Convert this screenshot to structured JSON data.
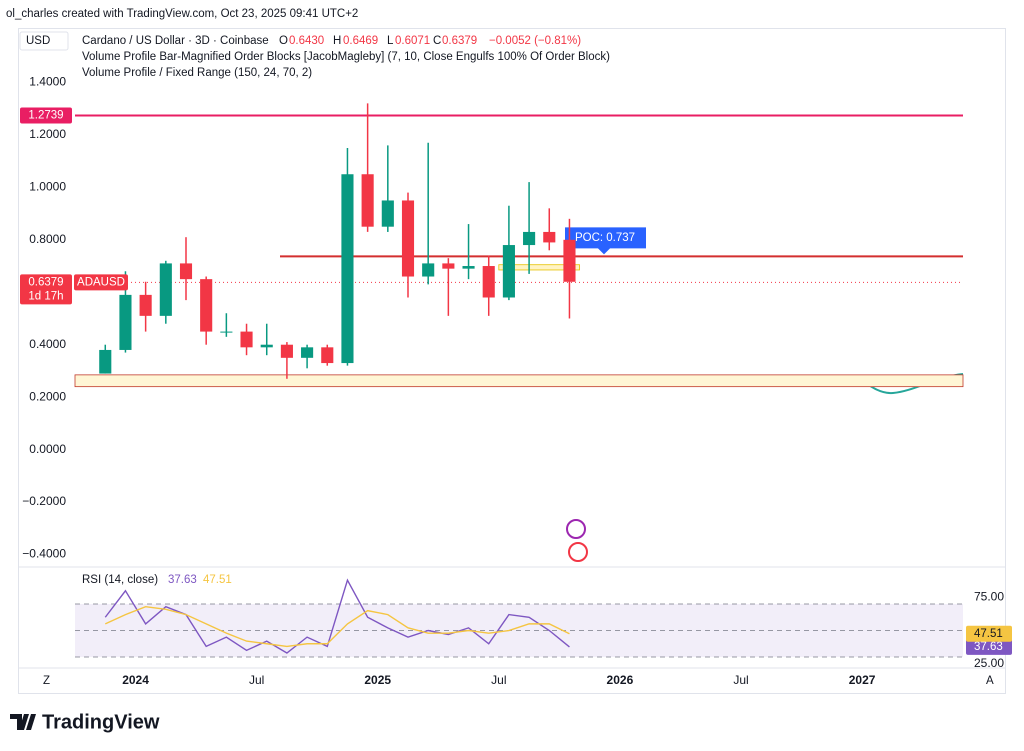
{
  "attribution": "ol_charles created with TradingView.com, Oct 23, 2025 09:41 UTC+2",
  "controls": {
    "left": "Z",
    "right": "A"
  },
  "footer": {
    "logo": "TradingView"
  },
  "chart_data": [
    {
      "type": "candlestick",
      "currency": "USD",
      "symbol_title": "Cardano / US Dollar · 3D · Coinbase",
      "ohlc_legend": {
        "o_label": "O",
        "o": "0.6430",
        "h_label": "H",
        "h": "0.6469",
        "l_label": "L",
        "l": "0.6071",
        "c_label": "C",
        "c": "0.6379",
        "change": "−0.0052 (−0.81%)"
      },
      "indicators": [
        "Volume Profile Bar-Magnified Order Blocks [JacobMagleby] (7, 10, Close Engulfs 100% Of Order Block)",
        "Volume Profile / Fixed Range (150, 24, 70, 2)"
      ],
      "x": [
        "2023-11",
        "2023-12",
        "2024-01",
        "2024-02",
        "2024-03",
        "2024-04",
        "2024-05",
        "2024-06",
        "2024-07",
        "2024-08",
        "2024-09",
        "2024-10",
        "2024-11",
        "2024-12",
        "2025-01",
        "2025-02",
        "2025-03",
        "2025-04",
        "2025-05",
        "2025-06",
        "2025-07",
        "2025-08",
        "2025-09",
        "2025-10"
      ],
      "open": [
        0.29,
        0.38,
        0.59,
        0.51,
        0.71,
        0.65,
        0.45,
        0.45,
        0.39,
        0.4,
        0.35,
        0.39,
        0.33,
        1.05,
        0.85,
        0.95,
        0.66,
        0.71,
        0.69,
        0.7,
        0.58,
        0.78,
        0.83,
        0.8
      ],
      "high": [
        0.4,
        0.68,
        0.64,
        0.72,
        0.81,
        0.66,
        0.52,
        0.48,
        0.48,
        0.41,
        0.4,
        0.4,
        1.15,
        1.32,
        1.16,
        0.98,
        1.17,
        0.73,
        0.86,
        0.74,
        0.93,
        1.02,
        0.92,
        0.88
      ],
      "low": [
        0.29,
        0.37,
        0.45,
        0.48,
        0.57,
        0.4,
        0.43,
        0.36,
        0.36,
        0.27,
        0.31,
        0.32,
        0.32,
        0.83,
        0.83,
        0.58,
        0.63,
        0.51,
        0.65,
        0.51,
        0.57,
        0.67,
        0.76,
        0.5
      ],
      "close": [
        0.38,
        0.59,
        0.51,
        0.71,
        0.65,
        0.45,
        0.45,
        0.39,
        0.4,
        0.35,
        0.39,
        0.33,
        1.05,
        0.85,
        0.95,
        0.66,
        0.71,
        0.69,
        0.7,
        0.58,
        0.78,
        0.83,
        0.79,
        0.64
      ],
      "up_color": "#089981",
      "down_color": "#f23645",
      "xlim": [
        "2023-10",
        "2027-06"
      ],
      "xticks": [
        {
          "value": "2024-01",
          "label": "2024"
        },
        {
          "value": "2024-07",
          "label": "Jul"
        },
        {
          "value": "2025-01",
          "label": "2025"
        },
        {
          "value": "2025-07",
          "label": "Jul"
        },
        {
          "value": "2026-01",
          "label": "2026"
        },
        {
          "value": "2026-07",
          "label": "Jul"
        },
        {
          "value": "2027-01",
          "label": "2027"
        }
      ],
      "ylim": [
        -0.44,
        1.6
      ],
      "yticks": [
        {
          "value": 1.4,
          "label": "1.4000"
        },
        {
          "value": 1.2,
          "label": "1.2000"
        },
        {
          "value": 1.0,
          "label": "1.0000"
        },
        {
          "value": 0.8,
          "label": "0.8000"
        },
        {
          "value": 0.4,
          "label": "0.4000"
        },
        {
          "value": 0.2,
          "label": "0.2000"
        },
        {
          "value": 0.0,
          "label": "0.0000"
        },
        {
          "value": -0.2,
          "label": "−0.2000"
        },
        {
          "value": -0.4,
          "label": "−0.4000"
        }
      ],
      "grid": false,
      "level": {
        "value": 1.2739,
        "color": "#e91e63"
      },
      "poc": {
        "value": 0.737,
        "label": "POC: 0.737",
        "color": "#d32f2f"
      },
      "last_price": {
        "value": 0.6379,
        "symbol": "ADAUSD",
        "countdown": "1d 17h"
      },
      "zones": [
        {
          "start": "2023-10",
          "low": 0.24,
          "high": 0.285,
          "color": "#fff6d5"
        },
        {
          "start": "2025-07",
          "low": 0.685,
          "high": 0.705,
          "color": "#fff3c4"
        }
      ]
    },
    {
      "type": "line",
      "title": "RSI (14, close)",
      "x": [
        "2023-11",
        "2023-12",
        "2024-01",
        "2024-02",
        "2024-03",
        "2024-04",
        "2024-05",
        "2024-06",
        "2024-07",
        "2024-08",
        "2024-09",
        "2024-10",
        "2024-11",
        "2024-12",
        "2025-01",
        "2025-02",
        "2025-03",
        "2025-04",
        "2025-05",
        "2025-06",
        "2025-07",
        "2025-08",
        "2025-09",
        "2025-10"
      ],
      "series": [
        {
          "name": "RSI",
          "color": "#7e57c2",
          "values": [
            60,
            80,
            55,
            68,
            62,
            38,
            45,
            35,
            42,
            33,
            45,
            38,
            88,
            60,
            52,
            45,
            50,
            47,
            52,
            40,
            62,
            60,
            50,
            37.63
          ]
        },
        {
          "name": "RSI-based MA",
          "color": "#f5c542",
          "values": [
            55,
            62,
            68,
            66,
            62,
            55,
            48,
            42,
            40,
            38,
            40,
            40,
            55,
            65,
            62,
            52,
            48,
            48,
            50,
            48,
            50,
            55,
            55,
            47.51
          ]
        }
      ],
      "ylim": [
        21.7,
        91.9
      ],
      "yticks": [
        {
          "value": 75,
          "label": "75.00"
        },
        {
          "value": 25,
          "label": "25.00"
        }
      ],
      "bands": [
        70,
        50,
        30
      ]
    }
  ]
}
